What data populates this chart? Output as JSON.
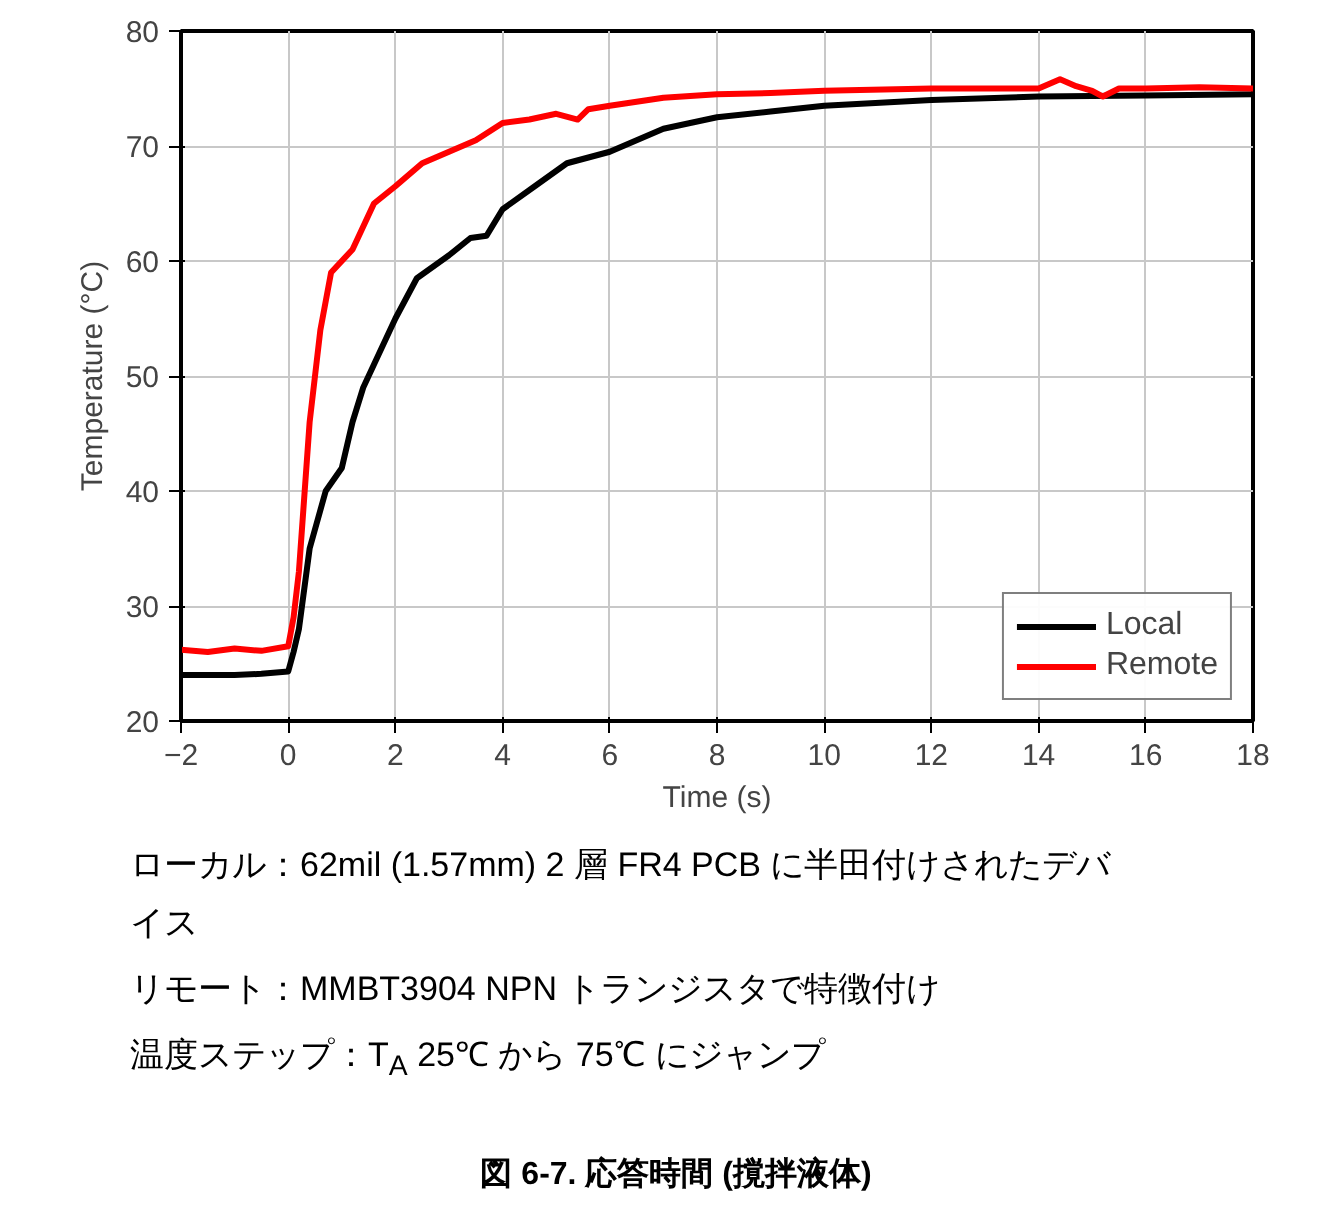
{
  "chart_data": {
    "type": "line",
    "title": "図 6-7. 応答時間 (撹拌液体)",
    "xlabel": "Time (s)",
    "ylabel": "Temperature (°C)",
    "xlim": [
      -2,
      18
    ],
    "xticks": [
      -2,
      0,
      2,
      4,
      6,
      8,
      10,
      12,
      14,
      16,
      18
    ],
    "ylim": [
      20,
      80
    ],
    "yticks": [
      20,
      30,
      40,
      50,
      60,
      70,
      80
    ],
    "grid": true,
    "legend": "bottom right",
    "line_style": "solid",
    "series": [
      {
        "name": "Local",
        "color": "#000000",
        "x": [
          -2,
          -1,
          -0.5,
          0,
          0.1,
          0.2,
          0.4,
          0.7,
          1.0,
          1.2,
          1.4,
          1.6,
          2.0,
          2.4,
          3.0,
          3.4,
          3.7,
          4.0,
          4.6,
          5.2,
          6,
          6.5,
          7,
          8,
          9,
          10,
          12,
          14,
          16,
          18
        ],
        "values": [
          24,
          24,
          24.1,
          24.3,
          26,
          28,
          35,
          40,
          42,
          46,
          49,
          51,
          55,
          58.5,
          60.5,
          62,
          62.2,
          64.5,
          66.5,
          68.5,
          69.5,
          70.5,
          71.5,
          72.5,
          73,
          73.5,
          74,
          74.3,
          74.4,
          74.5
        ]
      },
      {
        "name": "Remote",
        "color": "#ff0000",
        "x": [
          -2,
          -1.5,
          -1,
          -0.5,
          0,
          0.1,
          0.2,
          0.4,
          0.6,
          0.8,
          1.2,
          1.6,
          2,
          2.5,
          3,
          3.5,
          4,
          4.5,
          5,
          5.4,
          5.6,
          6,
          7,
          8,
          9,
          10,
          12,
          14,
          14.4,
          14.7,
          15,
          15.2,
          15.5,
          16,
          17,
          18
        ],
        "values": [
          26.2,
          26,
          26.3,
          26.1,
          26.5,
          29,
          33,
          46,
          54,
          59,
          61,
          65,
          66.5,
          68.5,
          69.5,
          70.5,
          72,
          72.3,
          72.8,
          72.3,
          73.2,
          73.5,
          74.2,
          74.5,
          74.6,
          74.8,
          75,
          75,
          75.8,
          75.2,
          74.8,
          74.3,
          75,
          75,
          75.1,
          75
        ]
      }
    ],
    "annotations": [
      "ローカル：62mil (1.57mm) 2 層 FR4 PCB に半田付けされたデバイス",
      "リモート：MMBT3904 NPN トランジスタで特徴付け",
      "温度ステップ：T$_{A}$ 25℃ から 75℃ にジャンプ"
    ]
  }
}
